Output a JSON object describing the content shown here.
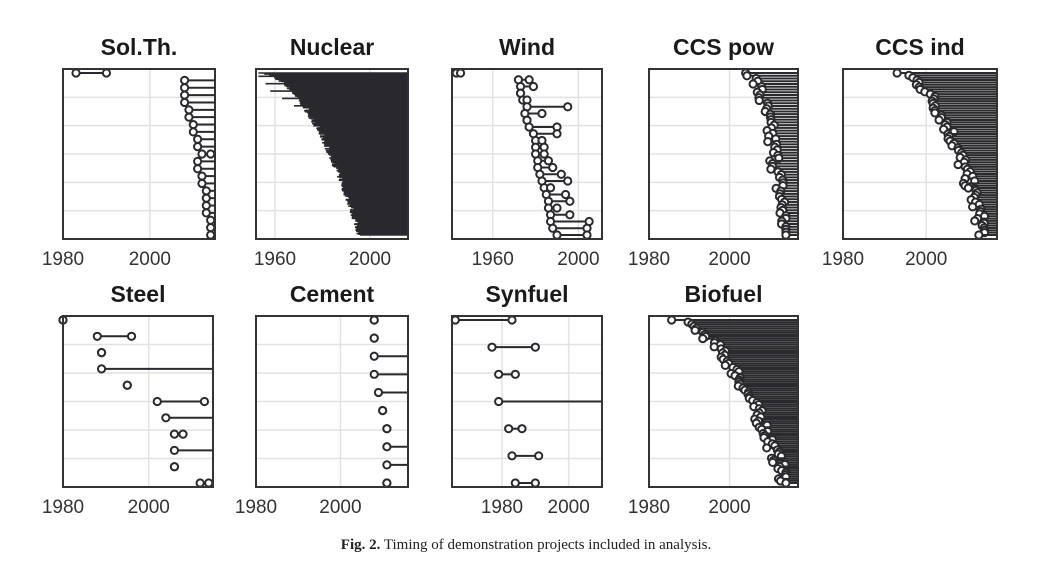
{
  "caption": {
    "label": "Fig. 2.",
    "text": "Timing of demonstration projects included in analysis."
  },
  "colors": {
    "ink": "#2a2a2e",
    "grid": "#e2e2e2",
    "frame": "#333333"
  },
  "chart_data": [
    {
      "type": "scatter",
      "title": "Sol.Th.",
      "xlim": [
        1980,
        2015
      ],
      "xticks": [
        1980,
        2000
      ],
      "grid": true,
      "projects": [
        [
          1983,
          1990
        ],
        [
          2008,
          2015
        ],
        [
          2008,
          2015
        ],
        [
          2008,
          2015
        ],
        [
          2008,
          2015
        ],
        [
          2009,
          2015
        ],
        [
          2009,
          2015
        ],
        [
          2010,
          2015
        ],
        [
          2010,
          2015
        ],
        [
          2011,
          2015
        ],
        [
          2011,
          2015
        ],
        [
          2012,
          2014
        ],
        [
          2011,
          2015
        ],
        [
          2011,
          2015
        ],
        [
          2012,
          2015
        ],
        [
          2012,
          2015
        ],
        [
          2013,
          2015
        ],
        [
          2013,
          2015
        ],
        [
          2013,
          2015
        ],
        [
          2013,
          2015
        ],
        [
          2014,
          2015
        ],
        [
          2014,
          2015
        ],
        [
          2014,
          2015
        ]
      ]
    },
    {
      "type": "scatter",
      "title": "Nuclear",
      "xlim": [
        1952,
        2016
      ],
      "xticks": [
        1960,
        2000
      ],
      "grid": true,
      "dense": {
        "count": 440,
        "startFrom": 1953,
        "startTo": 1996,
        "endAfter": 2016,
        "earlyEnds": [
          [
            1953,
            2006
          ],
          [
            1956,
            2007
          ],
          [
            1958,
            2005
          ],
          [
            1963,
            2002
          ],
          [
            1968,
            2004
          ],
          [
            1975,
            2010
          ],
          [
            1978,
            2008
          ],
          [
            1985,
            2006
          ],
          [
            1988,
            2010
          ],
          [
            1992,
            2011
          ]
        ]
      }
    },
    {
      "type": "scatter",
      "title": "Wind",
      "xlim": [
        1941,
        2011
      ],
      "xticks": [
        1960,
        2000
      ],
      "grid": true,
      "projects": [
        [
          1943,
          1945
        ],
        [
          1972,
          1977
        ],
        [
          1973,
          1979
        ],
        [
          1973,
          1973
        ],
        [
          1974,
          1976
        ],
        [
          1976,
          1995
        ],
        [
          1975,
          1983
        ],
        [
          1976,
          1976
        ],
        [
          1977,
          1990
        ],
        [
          1979,
          1990
        ],
        [
          1980,
          1983
        ],
        [
          1980,
          1984
        ],
        [
          1980,
          1984
        ],
        [
          1981,
          1986
        ],
        [
          1981,
          1988
        ],
        [
          1982,
          1992
        ],
        [
          1983,
          1995
        ],
        [
          1984,
          1987
        ],
        [
          1985,
          1994
        ],
        [
          1986,
          1996
        ],
        [
          1986,
          1990
        ],
        [
          1987,
          1996
        ],
        [
          1987,
          2005
        ],
        [
          1988,
          2004
        ],
        [
          1990,
          2004
        ]
      ]
    },
    {
      "type": "scatter",
      "title": "CCS pow",
      "xlim": [
        1980,
        2017
      ],
      "xticks": [
        1980,
        2000
      ],
      "grid": true,
      "dense": {
        "count": 60,
        "startFrom": 2004,
        "startTo": 2014,
        "endAfter": 2017
      }
    },
    {
      "type": "scatter",
      "title": "CCS ind",
      "xlim": [
        1980,
        2017
      ],
      "xticks": [
        1980,
        2000
      ],
      "grid": true,
      "dense": {
        "count": 70,
        "startFrom": 1993,
        "startTo": 2014,
        "endAfter": 2017
      }
    },
    {
      "type": "scatter",
      "title": "Steel",
      "xlim": [
        1980,
        2015
      ],
      "xticks": [
        1980,
        2000
      ],
      "grid": true,
      "projects": [
        [
          1980,
          1980
        ],
        [
          1988,
          1996
        ],
        [
          1989,
          1989
        ],
        [
          1989,
          2015
        ],
        [
          1995,
          1995
        ],
        [
          2002,
          2013
        ],
        [
          2004,
          2015
        ],
        [
          2006,
          2008
        ],
        [
          2006,
          2015
        ],
        [
          2006,
          2006
        ],
        [
          2012,
          2014
        ]
      ]
    },
    {
      "type": "scatter",
      "title": "Cement",
      "xlim": [
        1980,
        2016
      ],
      "xticks": [
        1980,
        2000
      ],
      "grid": true,
      "projects": [
        [
          2008,
          2008
        ],
        [
          2008,
          2008
        ],
        [
          2008,
          2016
        ],
        [
          2008,
          2016
        ],
        [
          2009,
          2016
        ],
        [
          2010,
          2010
        ],
        [
          2011,
          2011
        ],
        [
          2011,
          2016
        ],
        [
          2011,
          2016
        ],
        [
          2011,
          2011
        ]
      ]
    },
    {
      "type": "scatter",
      "title": "Synfuel",
      "xlim": [
        1965,
        2010
      ],
      "xticks": [
        1980,
        2000
      ],
      "grid": true,
      "projects": [
        [
          1966,
          1983
        ],
        [
          1977,
          1990
        ],
        [
          1979,
          1984
        ],
        [
          1979,
          2010
        ],
        [
          1982,
          1986
        ],
        [
          1983,
          1991
        ],
        [
          1984,
          1990
        ]
      ]
    },
    {
      "type": "scatter",
      "title": "Biofuel",
      "xlim": [
        1980,
        2017
      ],
      "xticks": [
        1980,
        2000
      ],
      "grid": true,
      "dense": {
        "count": 80,
        "startFrom": 1985,
        "startTo": 2014,
        "endAfter": 2017
      }
    }
  ]
}
